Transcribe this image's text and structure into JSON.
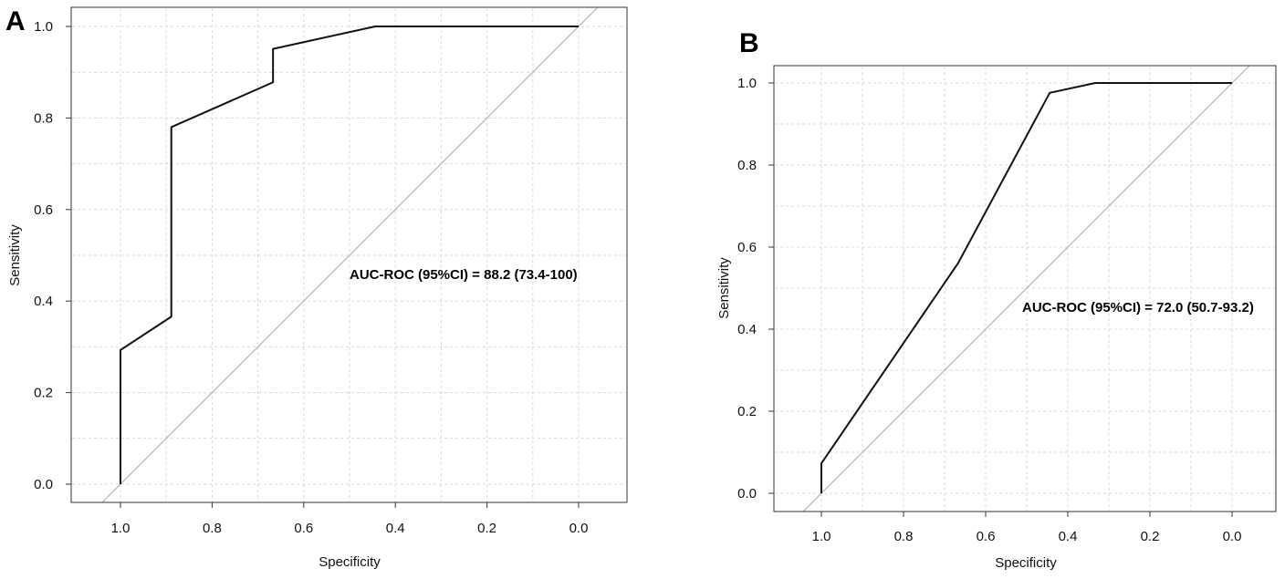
{
  "panels": [
    {
      "label": "A",
      "annotation": "AUC-ROC (95%CI) = 88.2 (73.4-100)"
    },
    {
      "label": "B",
      "annotation": "AUC-ROC (95%CI) = 72.0 (50.7-93.2)"
    }
  ],
  "chart_data": [
    {
      "type": "line",
      "panel": "A",
      "title": "",
      "xlabel": "Specificity",
      "ylabel": "Sensitivity",
      "xlim": [
        1.1,
        -0.1
      ],
      "ylim": [
        -0.02,
        1.04
      ],
      "x_reversed": true,
      "xticks": [
        1.0,
        0.8,
        0.6,
        0.4,
        0.2,
        0.0
      ],
      "xtick_labels": [
        "1.0",
        "0.8",
        "0.6",
        "0.4",
        "0.2",
        "0.0"
      ],
      "yticks": [
        0.0,
        0.2,
        0.4,
        0.6,
        0.8,
        1.0
      ],
      "ytick_labels": [
        "0.0",
        "0.2",
        "0.4",
        "0.6",
        "0.8",
        "1.0"
      ],
      "grid": true,
      "reference_line": "diagonal",
      "annotation": "AUC-ROC (95%CI) = 88.2 (73.4-100)",
      "series": [
        {
          "specificity": [
            1.0,
            1.0,
            0.889,
            0.889,
            0.667,
            0.667,
            0.444,
            0.0
          ],
          "sensitivity": [
            0.0,
            0.293,
            0.366,
            0.78,
            0.878,
            0.951,
            1.0,
            1.0
          ]
        }
      ]
    },
    {
      "type": "line",
      "panel": "B",
      "title": "",
      "xlabel": "Specificity",
      "ylabel": "Sensitivity",
      "xlim": [
        1.1,
        -0.1
      ],
      "ylim": [
        -0.02,
        1.04
      ],
      "x_reversed": true,
      "xticks": [
        1.0,
        0.8,
        0.6,
        0.4,
        0.2,
        0.0
      ],
      "xtick_labels": [
        "1.0",
        "0.8",
        "0.6",
        "0.4",
        "0.2",
        "0.0"
      ],
      "yticks": [
        0.0,
        0.2,
        0.4,
        0.6,
        0.8,
        1.0
      ],
      "ytick_labels": [
        "0.0",
        "0.2",
        "0.4",
        "0.6",
        "0.8",
        "1.0"
      ],
      "grid": true,
      "reference_line": "diagonal",
      "annotation": "AUC-ROC (95%CI) = 72.0 (50.7-93.2)",
      "series": [
        {
          "specificity": [
            1.0,
            1.0,
            0.667,
            0.444,
            0.333,
            0.0
          ],
          "sensitivity": [
            0.0,
            0.073,
            0.561,
            0.976,
            1.0,
            1.0
          ]
        }
      ]
    }
  ]
}
